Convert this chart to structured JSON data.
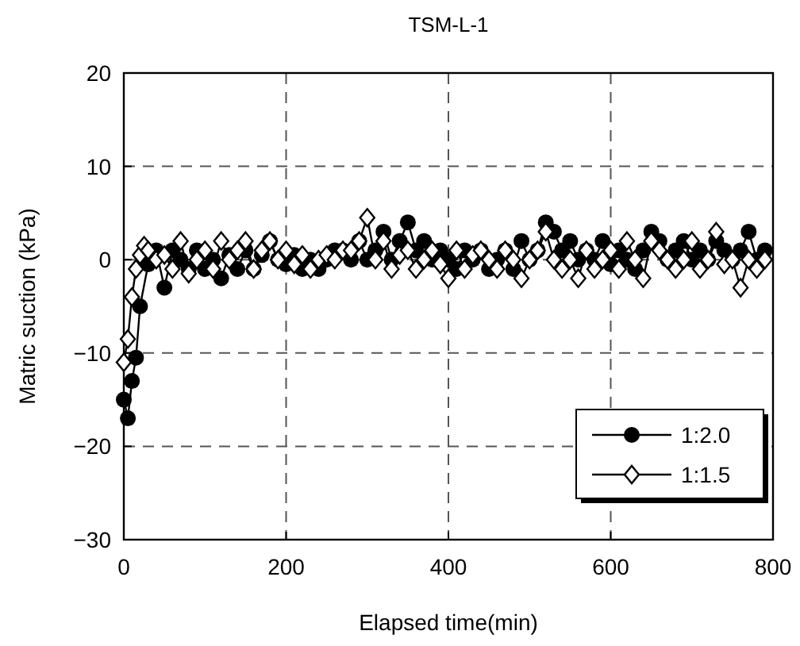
{
  "chart_data": {
    "type": "line",
    "title": "TSM-L-1",
    "xlabel": "Elapsed time(min)",
    "ylabel": "Matric suction (kPa)",
    "xlim": [
      0,
      800
    ],
    "xticks": [
      0,
      200,
      400,
      600,
      800
    ],
    "ylim": [
      -30,
      20
    ],
    "yticks": [
      -30,
      -20,
      -10,
      0,
      10,
      20
    ],
    "grid": true,
    "legend": "bottom right",
    "line_style": "solid",
    "series": [
      {
        "name": "1:2.0",
        "color": "#000000",
        "marker": "circle",
        "x": [
          0,
          5,
          10,
          15,
          20,
          30,
          40,
          50,
          60,
          70,
          80,
          90,
          100,
          110,
          120,
          130,
          140,
          150,
          160,
          170,
          180,
          190,
          200,
          210,
          220,
          230,
          240,
          250,
          260,
          270,
          280,
          290,
          300,
          310,
          320,
          330,
          340,
          350,
          360,
          370,
          380,
          390,
          400,
          410,
          420,
          430,
          440,
          450,
          460,
          470,
          480,
          490,
          500,
          510,
          520,
          530,
          540,
          550,
          560,
          570,
          580,
          590,
          600,
          610,
          620,
          630,
          640,
          650,
          660,
          670,
          680,
          690,
          700,
          710,
          720,
          730,
          740,
          750,
          760,
          770,
          780,
          790
        ],
        "values": [
          -15,
          -17,
          -13,
          -10.5,
          -5,
          -0.5,
          1,
          -3,
          1,
          0,
          -1,
          1,
          -1,
          0,
          -2,
          0.5,
          -1,
          1,
          -1,
          0.5,
          2,
          0,
          -0.5,
          0.5,
          -1,
          0,
          -1,
          0,
          1,
          1,
          0,
          2,
          0,
          1,
          3,
          0,
          2,
          4,
          1,
          2,
          0,
          1,
          0,
          -1,
          1,
          0,
          1,
          -1,
          0,
          1,
          -1,
          2,
          0,
          1,
          4,
          3,
          1,
          2,
          0,
          1,
          0,
          2,
          -0.5,
          1,
          0,
          -1,
          1,
          3,
          2,
          0,
          1,
          2,
          0,
          1,
          0,
          2,
          1,
          0,
          1,
          3,
          0,
          1
        ]
      },
      {
        "name": "1:1.5",
        "color": "#000000",
        "marker": "diamond",
        "x": [
          0,
          5,
          10,
          15,
          20,
          25,
          30,
          40,
          50,
          60,
          70,
          80,
          90,
          100,
          110,
          120,
          130,
          140,
          150,
          160,
          170,
          180,
          190,
          200,
          210,
          220,
          230,
          240,
          250,
          260,
          270,
          280,
          290,
          300,
          310,
          320,
          330,
          340,
          350,
          360,
          370,
          380,
          390,
          400,
          410,
          420,
          430,
          440,
          450,
          460,
          470,
          480,
          490,
          500,
          510,
          520,
          530,
          540,
          550,
          560,
          570,
          580,
          590,
          600,
          610,
          620,
          630,
          640,
          650,
          660,
          670,
          680,
          690,
          700,
          710,
          720,
          730,
          740,
          750,
          760,
          770,
          780,
          790
        ],
        "values": [
          -11,
          -8.5,
          -4,
          -1,
          0.5,
          1.5,
          1,
          0,
          0.5,
          -1,
          2,
          -1.5,
          0,
          1,
          -1,
          2,
          0,
          1,
          2,
          -1,
          1,
          2,
          0,
          1,
          -0.5,
          0.5,
          -1,
          0,
          0.5,
          0,
          1,
          1,
          2,
          4.5,
          0,
          2,
          -1,
          0.5,
          1,
          -1,
          0,
          1,
          -0.5,
          -2,
          1,
          -1,
          0.5,
          1,
          0,
          -1,
          1,
          0,
          -2,
          0,
          1,
          3,
          0,
          -1,
          0,
          -2,
          1,
          -1,
          0,
          1,
          -1,
          2,
          0,
          -2,
          2,
          1,
          0,
          -1,
          0,
          2,
          -1,
          0,
          3,
          -0.5,
          0,
          -3,
          0,
          -1,
          0
        ]
      }
    ]
  }
}
